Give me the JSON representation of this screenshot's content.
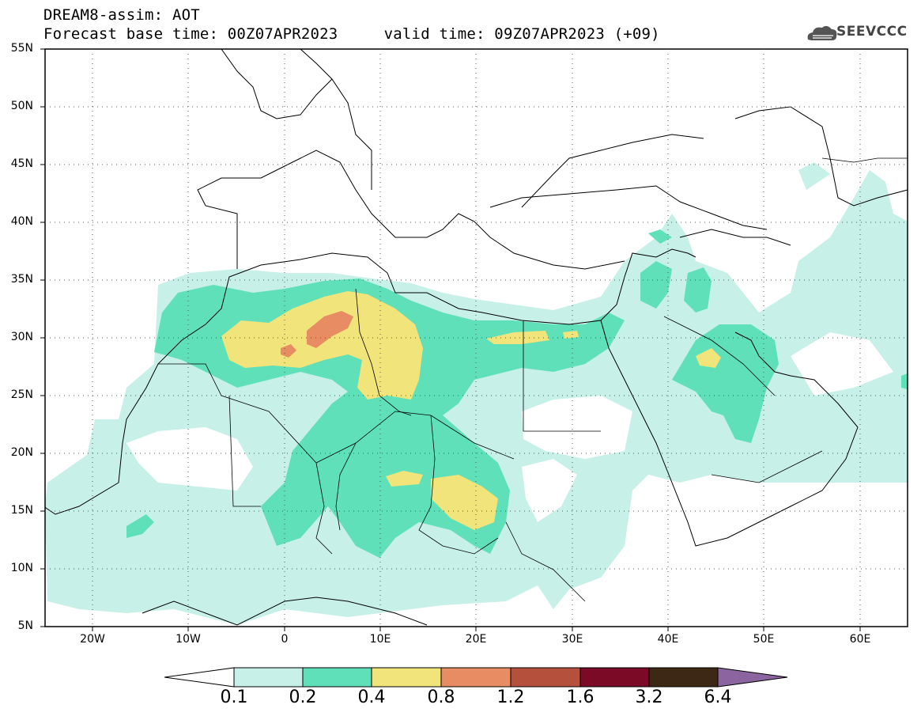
{
  "header": {
    "title": "DREAM8-assim: AOT",
    "subtitle": "Forecast base time: 00Z07APR2023     valid time: 09Z07APR2023 (+09)",
    "logo_text": "SEEVCCC"
  },
  "map": {
    "projection": "lat-lon",
    "lon_range": [
      -25,
      65
    ],
    "lat_range": [
      5,
      55
    ],
    "lat_labels": [
      "55N",
      "50N",
      "45N",
      "40N",
      "35N",
      "30N",
      "25N",
      "20N",
      "15N",
      "10N",
      "5N"
    ],
    "lon_labels": [
      "20W",
      "10W",
      "0",
      "10E",
      "20E",
      "30E",
      "40E",
      "50E",
      "60E"
    ]
  },
  "colorbar": {
    "labels": [
      "0.1",
      "0.2",
      "0.4",
      "0.8",
      "1.2",
      "1.6",
      "3.2",
      "6.4"
    ],
    "colors": [
      "#ffffff",
      "#c6f0e8",
      "#5fe0b8",
      "#f1e47a",
      "#e88c64",
      "#b5503c",
      "#7a0a26",
      "#3c2814",
      "#8c64a0"
    ]
  },
  "chart_data": {
    "type": "heatmap",
    "title": "DREAM8-assim: AOT",
    "variable": "Aerosol Optical Thickness",
    "levels": [
      0.1,
      0.2,
      0.4,
      0.8,
      1.2,
      1.6,
      3.2,
      6.4
    ],
    "xlim": [
      -25,
      65
    ],
    "ylim": [
      5,
      55
    ]
  }
}
